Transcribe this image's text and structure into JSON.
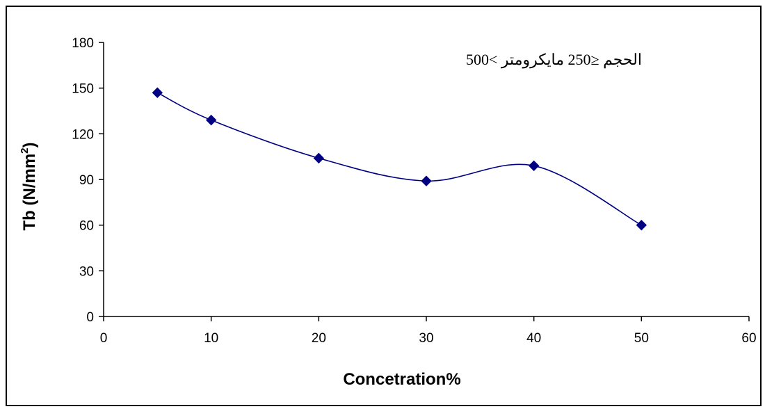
{
  "chart_data": {
    "type": "line",
    "xlabel": "Concetration%",
    "ylabel_main": "Tb (N/mm",
    "ylabel_sup": "2",
    "ylabel_end": ")",
    "annotation": "500< الحجم  ≤250 مايكرومتر",
    "xlim": [
      0,
      60
    ],
    "ylim": [
      0,
      180
    ],
    "x_ticks": [
      0,
      10,
      20,
      30,
      40,
      50,
      60
    ],
    "y_ticks": [
      0,
      30,
      60,
      90,
      120,
      150,
      180
    ],
    "series": [
      {
        "x": [
          5,
          10,
          20,
          30,
          40,
          50
        ],
        "values": [
          147,
          129,
          104,
          89,
          99,
          60
        ]
      }
    ],
    "marker_color": "#000080",
    "line_color": "#000080",
    "grid": false,
    "legend": "none"
  }
}
